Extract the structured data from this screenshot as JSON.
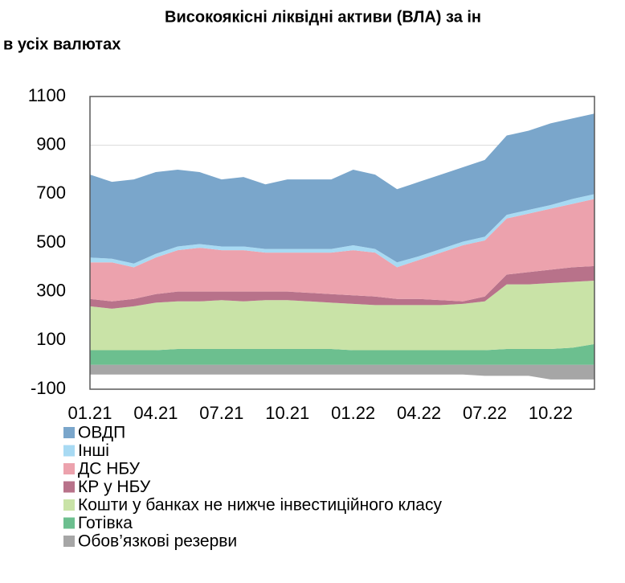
{
  "chart_data": {
    "type": "stacked_area",
    "title": "Високоякісні ліквідні активи (ВЛА) за ін",
    "subtitle": "в усіх валютах",
    "categories": [
      "01.21",
      null,
      null,
      "04.21",
      null,
      null,
      "07.21",
      null,
      null,
      "10.21",
      null,
      null,
      "01.22",
      null,
      null,
      "04.22",
      null,
      null,
      "07.22",
      null,
      null,
      "10.22",
      null,
      null
    ],
    "ylim": [
      -100,
      1100
    ],
    "yticks": [
      -100,
      100,
      300,
      500,
      700,
      900,
      1100
    ],
    "grid": true,
    "series": [
      {
        "name": "ОВДП",
        "color": "#7aa6cb",
        "values": [
          340,
          315,
          345,
          335,
          315,
          295,
          275,
          285,
          265,
          285,
          285,
          285,
          310,
          305,
          300,
          305,
          305,
          305,
          315,
          325,
          325,
          335,
          330,
          330
        ]
      },
      {
        "name": "Інші",
        "color": "#a8daf3",
        "values": [
          20,
          15,
          15,
          15,
          15,
          15,
          15,
          15,
          15,
          15,
          15,
          15,
          20,
          15,
          20,
          15,
          15,
          15,
          15,
          15,
          15,
          15,
          20,
          20
        ]
      },
      {
        "name": "ДС НБУ",
        "color": "#eca2ad",
        "values": [
          150,
          160,
          130,
          150,
          170,
          180,
          170,
          170,
          160,
          160,
          165,
          170,
          185,
          180,
          130,
          160,
          195,
          230,
          230,
          230,
          240,
          250,
          260,
          275
        ]
      },
      {
        "name": "КР у НБУ",
        "color": "#b8728a",
        "values": [
          30,
          30,
          30,
          35,
          40,
          40,
          35,
          40,
          35,
          35,
          35,
          35,
          35,
          35,
          25,
          25,
          20,
          10,
          20,
          40,
          50,
          55,
          60,
          60
        ]
      },
      {
        "name": "Кошти у банках не нижче інвестиційного класу",
        "color": "#c9e3a7",
        "values": [
          180,
          170,
          180,
          195,
          195,
          195,
          200,
          195,
          200,
          200,
          195,
          190,
          190,
          185,
          185,
          185,
          185,
          190,
          200,
          265,
          265,
          270,
          270,
          260
        ]
      },
      {
        "name": "Готівка",
        "color": "#6cbf8f",
        "values": [
          60,
          60,
          60,
          60,
          65,
          65,
          65,
          65,
          65,
          65,
          65,
          65,
          60,
          60,
          60,
          60,
          60,
          60,
          60,
          65,
          65,
          65,
          70,
          85
        ]
      },
      {
        "name": "Обов’язкові резерви",
        "color": "#a6a6a6",
        "values": [
          -40,
          -40,
          -40,
          -40,
          -40,
          -40,
          -40,
          -40,
          -40,
          -40,
          -40,
          -40,
          -40,
          -40,
          -40,
          -40,
          -40,
          -40,
          -45,
          -45,
          -45,
          -60,
          -60,
          -60
        ]
      }
    ]
  }
}
